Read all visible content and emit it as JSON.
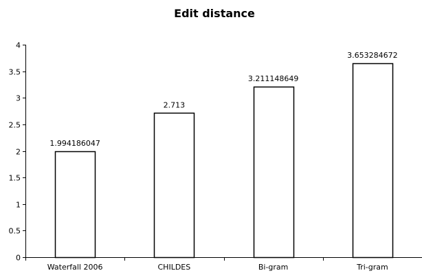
{
  "chart_data": {
    "type": "bar",
    "title": "Edit distance",
    "xlabel": "",
    "ylabel": "",
    "categories": [
      "Waterfall 2006",
      "CHILDES",
      "Bi-gram",
      "Tri-gram"
    ],
    "values": [
      1.994186047,
      2.713,
      3.211148649,
      3.653284672
    ],
    "data_labels": [
      "1.994186047",
      "2.713",
      "3.211148649",
      "3.653284672"
    ],
    "ylim": [
      0,
      4
    ],
    "yticks": [
      0,
      0.5,
      1,
      1.5,
      2,
      2.5,
      3,
      3.5,
      4
    ],
    "ytick_labels": [
      "0",
      "0.5",
      "1",
      "1.5",
      "2",
      "2.5",
      "3",
      "3.5",
      "4"
    ],
    "grid": false,
    "legend": "none",
    "colors": {
      "bar_fill": "#ffffff",
      "bar_stroke": "#000000",
      "axis": "#000000"
    }
  }
}
